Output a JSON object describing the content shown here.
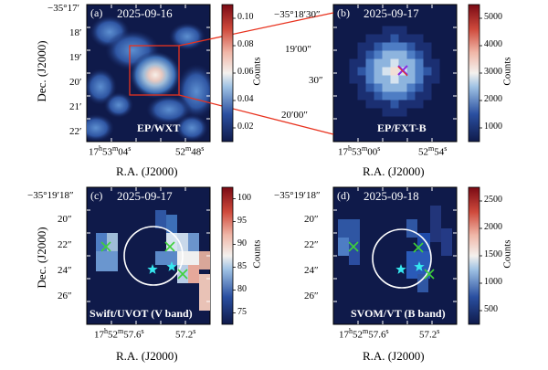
{
  "panels": [
    {
      "tag": "(a)",
      "date": "2025-09-16",
      "instrument": "EP/WXT",
      "yticks": [
        "−35°17′",
        "18′",
        "19′",
        "20′",
        "21′",
        "22′"
      ],
      "xticks": [
        {
          "h": "17",
          "hsup": "h",
          "m": "53",
          "msup": "m",
          "s": "04",
          "ssup": "s"
        },
        {
          "h": "",
          "hsup": "",
          "m": "52",
          "msup": "m",
          "s": "48",
          "ssup": "s"
        }
      ],
      "colorbar": {
        "ticks": [
          "0.10",
          "0.08",
          "0.06",
          "0.04",
          "0.02"
        ],
        "label": "Counts",
        "cmap": "blue-white-red"
      }
    },
    {
      "tag": "(b)",
      "date": "2025-09-17",
      "instrument": "EP/FXT-B",
      "yticks": [
        "−35°18′30″",
        "19′00″",
        "30″",
        "20′00″"
      ],
      "xticks": [
        {
          "h": "17",
          "hsup": "h",
          "m": "53",
          "msup": "m",
          "s": "00",
          "ssup": "s"
        },
        {
          "h": "",
          "hsup": "",
          "m": "52",
          "msup": "m",
          "s": "54",
          "ssup": "s"
        }
      ],
      "colorbar": {
        "ticks": [
          "5000",
          "4000",
          "3000",
          "2000",
          "1000"
        ],
        "label": "Counts",
        "cmap": "blue-white-red"
      }
    },
    {
      "tag": "(c)",
      "date": "2025-09-17",
      "instrument": "Swift/UVOT (V band)",
      "yticks": [
        "−35°19′18″",
        "20″",
        "22″",
        "24″",
        "26″"
      ],
      "xticks": [
        {
          "h": "17",
          "hsup": "h",
          "m": "52",
          "msup": "m",
          "s": "57.6",
          "ssup": "s"
        },
        {
          "h": "",
          "hsup": "",
          "m": "",
          "msup": "",
          "s": "57.2",
          "ssup": "s"
        }
      ],
      "colorbar": {
        "ticks": [
          "100",
          "95",
          "90",
          "85",
          "80",
          "75"
        ],
        "label": "Counts",
        "cmap": "blue-white-red"
      }
    },
    {
      "tag": "(d)",
      "date": "2025-09-18",
      "instrument": "SVOM/VT (B band)",
      "yticks": [
        "−35°19′18″",
        "20″",
        "22″",
        "24″",
        "26″"
      ],
      "xticks": [
        {
          "h": "17",
          "hsup": "h",
          "m": "52",
          "msup": "m",
          "s": "57.6",
          "ssup": "s"
        },
        {
          "h": "",
          "hsup": "",
          "m": "",
          "msup": "",
          "s": "57.2",
          "ssup": "s"
        }
      ],
      "colorbar": {
        "ticks": [
          "2500",
          "2000",
          "1500",
          "1000",
          "500"
        ],
        "label": "Counts",
        "cmap": "blue-white-red"
      }
    }
  ],
  "axis_labels": {
    "dec": "Dec. (J2000)",
    "ra": "R.A. (J2000)"
  },
  "colors": {
    "background": "#0f1a4a",
    "zoom_box": "#e8321e",
    "circle": "#ffffff",
    "star": "#36e8f0",
    "cross": "#3fd13a",
    "cross_b": "#8a2be2"
  }
}
